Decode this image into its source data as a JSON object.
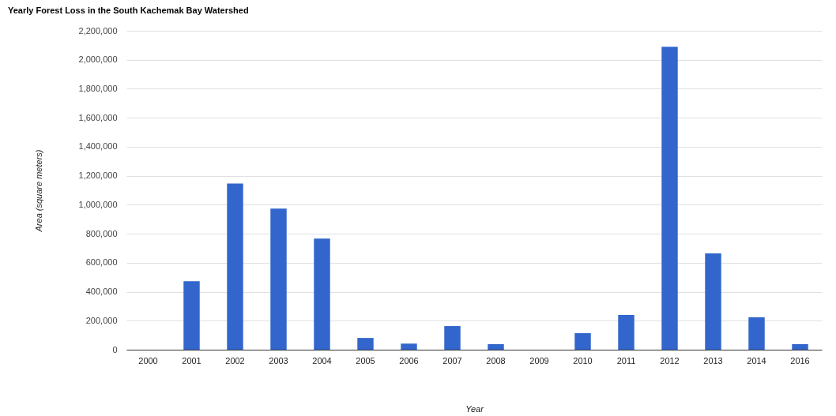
{
  "chart_data": {
    "type": "bar",
    "title": "Yearly Forest Loss in the South Kachemak Bay Watershed",
    "xlabel": "Year",
    "ylabel": "Area (square meters)",
    "categories": [
      "2000",
      "2001",
      "2002",
      "2003",
      "2004",
      "2005",
      "2006",
      "2007",
      "2008",
      "2009",
      "2010",
      "2011",
      "2012",
      "2013",
      "2014",
      "2016"
    ],
    "values": [
      0,
      472000,
      1146000,
      973000,
      767000,
      81000,
      42000,
      163000,
      38000,
      0,
      114000,
      240000,
      2090000,
      665000,
      224000,
      38000
    ],
    "color": "#3366cc",
    "ylim": [
      0,
      2200000
    ],
    "yticks": [
      0,
      {
        "value": 200000,
        "label": "200,000"
      },
      {
        "value": 400000,
        "label": "400,000"
      },
      {
        "value": 600000,
        "label": "600,000"
      },
      {
        "value": 800000,
        "label": "800,000"
      },
      {
        "value": 1000000,
        "label": "1,000,000"
      },
      {
        "value": 1200000,
        "label": "1,200,000"
      },
      {
        "value": 1400000,
        "label": "1,400,000"
      },
      {
        "value": 1600000,
        "label": "1,600,000"
      },
      {
        "value": 1800000,
        "label": "1,800,000"
      },
      {
        "value": 2000000,
        "label": "2,000,000"
      },
      {
        "value": 2200000,
        "label": "2,200,000"
      }
    ],
    "grid": "y"
  }
}
